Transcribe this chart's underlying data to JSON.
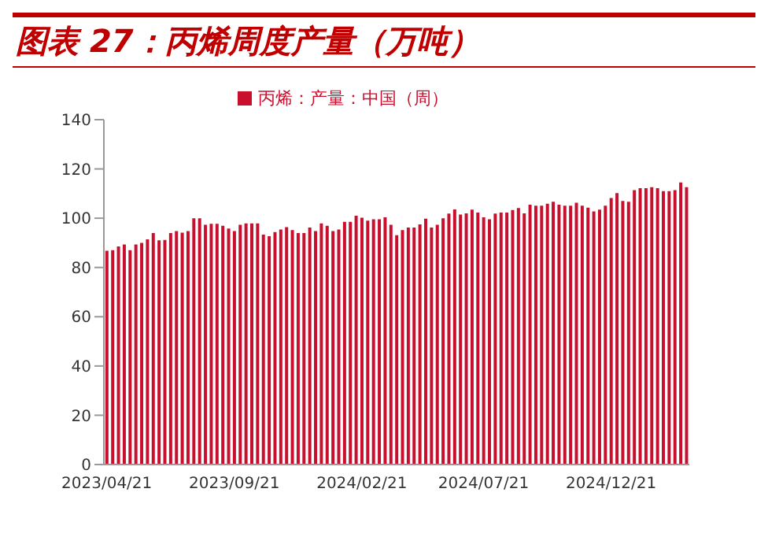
{
  "chart_data": {
    "type": "bar",
    "title": "图表 27：丙烯周度产量（万吨）",
    "categories": [
      "2023/04/21",
      null,
      null,
      null,
      null,
      null,
      null,
      null,
      null,
      null,
      null,
      null,
      null,
      null,
      null,
      null,
      null,
      null,
      null,
      null,
      null,
      null,
      "2023/09/21",
      null,
      null,
      null,
      null,
      null,
      null,
      null,
      null,
      null,
      null,
      null,
      null,
      null,
      null,
      null,
      null,
      null,
      null,
      null,
      null,
      null,
      "2024/02/21",
      null,
      null,
      null,
      null,
      null,
      null,
      null,
      null,
      null,
      null,
      null,
      null,
      null,
      null,
      null,
      null,
      null,
      null,
      null,
      null,
      "2024/07/21",
      null,
      null,
      null,
      null,
      null,
      null,
      null,
      null,
      null,
      null,
      null,
      null,
      null,
      null,
      null,
      null,
      null,
      null,
      null,
      null,
      null,
      "2024/12/21",
      null,
      null,
      null,
      null,
      null,
      null,
      null,
      null,
      null,
      null,
      null,
      null,
      null
    ],
    "series": [
      {
        "name": "丙烯：产量：中国（周）",
        "color": "#c8102e",
        "values": [
          86.8,
          87,
          88.5,
          89.3,
          87,
          89.3,
          90,
          91.4,
          94,
          91,
          91.2,
          94,
          94.8,
          94.1,
          94.8,
          100,
          100,
          97.3,
          97.7,
          97.7,
          96.9,
          95.8,
          94.8,
          97.3,
          97.9,
          97.9,
          97.9,
          93.3,
          92.7,
          94.4,
          95.4,
          96.4,
          95.2,
          94,
          94,
          96.2,
          94.8,
          97.9,
          96.9,
          94.8,
          95.4,
          98.5,
          98.5,
          101,
          100.2,
          99,
          99.6,
          99.6,
          100.4,
          97.3,
          93.1,
          95.2,
          96.2,
          96.2,
          97.5,
          99.8,
          96.2,
          97.3,
          100,
          101.9,
          103.6,
          101.5,
          102,
          103.5,
          102.3,
          100.4,
          99.6,
          101.9,
          102.3,
          102.3,
          103.3,
          104.1,
          102,
          105.5,
          105.1,
          105.1,
          105.9,
          106.7,
          105.5,
          105.1,
          105.1,
          106.3,
          105.1,
          104.3,
          102.8,
          103.5,
          105.1,
          108.2,
          110.2,
          107,
          106.7,
          111.4,
          112.2,
          112.2,
          112.6,
          112.2,
          111,
          111,
          111.4,
          114.5,
          112.6
        ]
      }
    ],
    "ylim": [
      0,
      140
    ],
    "yticks": [
      0,
      20,
      40,
      60,
      80,
      100,
      120,
      140
    ],
    "grid": false,
    "legend": "top"
  }
}
